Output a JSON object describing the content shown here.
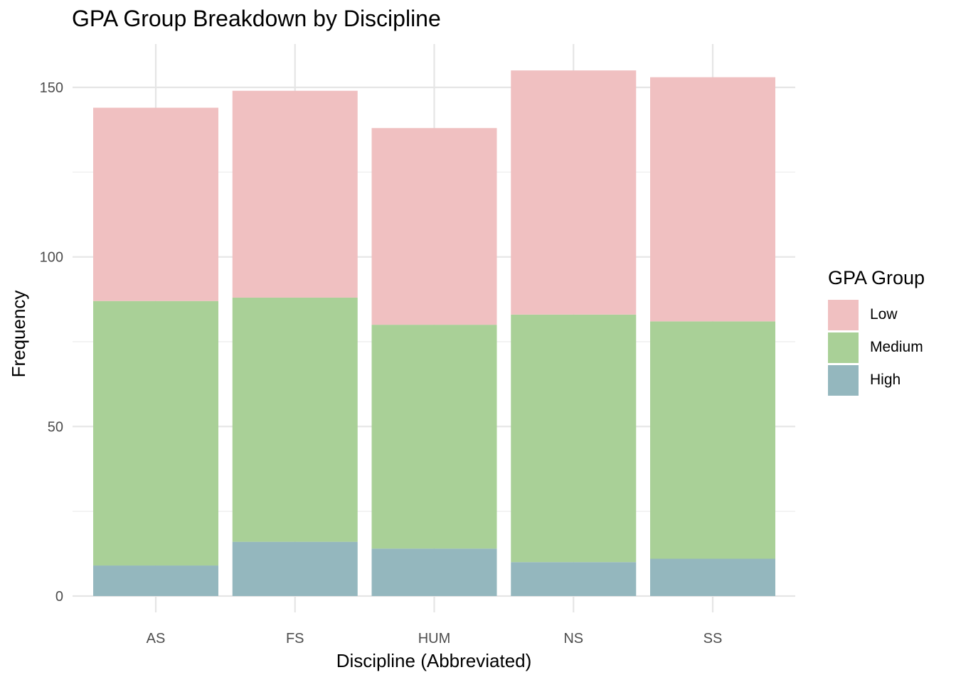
{
  "chart_data": {
    "type": "bar",
    "stacked": true,
    "title": "GPA Group Breakdown by Discipline",
    "xlabel": "Discipline (Abbreviated)",
    "ylabel": "Frequency",
    "categories": [
      "AS",
      "FS",
      "HUM",
      "NS",
      "SS"
    ],
    "series": [
      {
        "name": "High",
        "color": "#94B7BE",
        "values": [
          9,
          16,
          14,
          10,
          11
        ]
      },
      {
        "name": "Medium",
        "color": "#A9D097",
        "values": [
          78,
          72,
          66,
          73,
          70
        ]
      },
      {
        "name": "Low",
        "color": "#F0C0C1",
        "values": [
          57,
          61,
          58,
          72,
          72
        ]
      }
    ],
    "ylim": [
      0,
      160
    ],
    "yticks": [
      0,
      50,
      100,
      150
    ],
    "grid": true,
    "legend": {
      "title": "GPA Group",
      "position": "right",
      "entries": [
        {
          "label": "Low",
          "color": "#F0C0C1"
        },
        {
          "label": "Medium",
          "color": "#A9D097"
        },
        {
          "label": "High",
          "color": "#94B7BE"
        }
      ]
    }
  }
}
